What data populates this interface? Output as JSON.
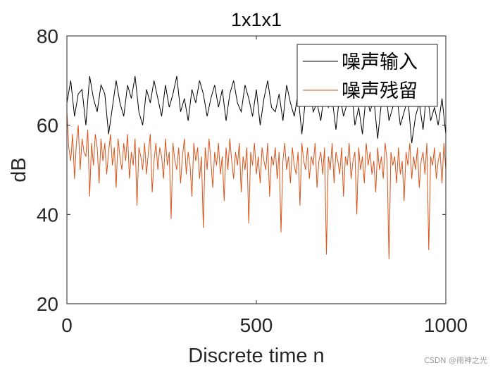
{
  "chart_data": {
    "type": "line",
    "title": "1x1x1",
    "xlabel": "Discrete time n",
    "ylabel": "dB",
    "xlim": [
      0,
      1000
    ],
    "ylim": [
      20,
      80
    ],
    "xticks": [
      0,
      500,
      1000
    ],
    "yticks": [
      20,
      40,
      60,
      80
    ],
    "grid": false,
    "legend_position": "top-right",
    "series": [
      {
        "name": "噪声输入",
        "color": "#000000",
        "x_step": 10,
        "values": [
          65,
          70,
          62,
          67,
          68,
          60,
          71,
          66,
          63,
          69,
          67,
          58,
          64,
          70,
          65,
          62,
          69,
          66,
          71,
          63,
          60,
          68,
          65,
          70,
          66,
          62,
          69,
          64,
          67,
          71,
          63,
          66,
          61,
          68,
          65,
          70,
          67,
          62,
          66,
          69,
          64,
          68,
          61,
          67,
          70,
          65,
          63,
          69,
          66,
          62,
          68,
          60,
          66,
          70,
          64,
          63,
          67,
          61,
          69,
          65,
          62,
          67,
          58,
          66,
          70,
          63,
          65,
          61,
          68,
          64,
          66,
          59,
          67,
          62,
          65,
          69,
          60,
          64,
          58,
          67,
          63,
          66,
          57,
          65,
          69,
          61,
          64,
          67,
          60,
          63,
          66,
          56,
          62,
          65,
          59,
          68,
          61,
          64,
          60,
          66,
          58
        ]
      },
      {
        "name": "噪声残留",
        "color": "#D95319",
        "x_step": 5,
        "values": [
          63,
          55,
          52,
          58,
          48,
          56,
          60,
          50,
          57,
          54,
          53,
          59,
          44,
          56,
          51,
          58,
          55,
          47,
          57,
          52,
          56,
          49,
          54,
          58,
          51,
          55,
          46,
          57,
          53,
          50,
          56,
          52,
          58,
          48,
          54,
          51,
          57,
          42,
          55,
          53,
          50,
          56,
          49,
          54,
          58,
          45,
          52,
          56,
          50,
          55,
          53,
          48,
          57,
          51,
          54,
          39,
          56,
          52,
          50,
          55,
          47,
          53,
          57,
          49,
          54,
          51,
          44,
          56,
          52,
          55,
          48,
          53,
          37,
          55,
          50,
          57,
          52,
          46,
          54,
          51,
          56,
          49,
          53,
          43,
          55,
          50,
          57,
          52,
          48,
          54,
          51,
          56,
          45,
          53,
          50,
          55,
          38,
          54,
          51,
          56,
          49,
          53,
          47,
          55,
          52,
          50,
          56,
          44,
          53,
          51,
          55,
          48,
          54,
          36,
          52,
          56,
          50,
          53,
          47,
          55,
          51,
          49,
          54,
          42,
          56,
          52,
          50,
          55,
          48,
          53,
          51,
          56,
          46,
          52,
          54,
          49,
          55,
          31,
          53,
          50,
          56,
          47,
          54,
          52,
          49,
          55,
          44,
          53,
          51,
          56,
          48,
          52,
          54,
          40,
          55,
          50,
          53,
          47,
          56,
          51,
          54,
          49,
          52,
          45,
          55,
          50,
          53,
          48,
          56,
          52,
          30,
          54,
          51,
          53,
          47,
          55,
          49,
          52,
          43,
          54,
          51,
          56,
          48,
          53,
          50,
          55,
          46,
          52,
          54,
          49,
          56,
          32,
          53,
          51,
          55,
          48,
          52,
          54,
          47,
          56,
          50
        ]
      }
    ]
  },
  "watermark": "CSDN @雨神之光"
}
